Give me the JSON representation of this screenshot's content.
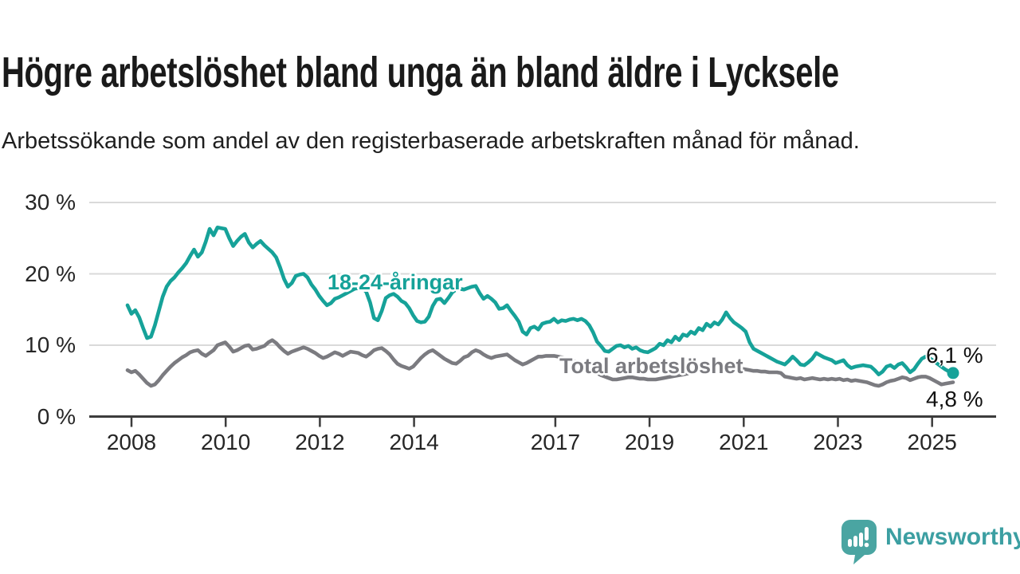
{
  "header": {
    "title": "Högre arbetslöshet bland unga än bland äldre i Lycksele",
    "subtitle": "Arbetssökande som andel av den registerbaserade arbetskraften månad för månad."
  },
  "chart_data": {
    "type": "line",
    "unit": "%",
    "x_start": "2008-01",
    "x_end": "2025-08",
    "points_per_year": 12,
    "ylim": [
      0,
      30
    ],
    "grid": "horizontal",
    "legend_position": "inline-labels",
    "yticks": [
      {
        "value": 0,
        "label": "0 %"
      },
      {
        "value": 10,
        "label": "10 %"
      },
      {
        "value": 20,
        "label": "20 %"
      },
      {
        "value": 30,
        "label": "30 %"
      }
    ],
    "xticks": [
      {
        "year": 2008,
        "label": "2008"
      },
      {
        "year": 2010,
        "label": "2010"
      },
      {
        "year": 2012,
        "label": "2012"
      },
      {
        "year": 2014,
        "label": "2014"
      },
      {
        "year": 2017,
        "label": "2017"
      },
      {
        "year": 2019,
        "label": "2019"
      },
      {
        "year": 2021,
        "label": "2021"
      },
      {
        "year": 2023,
        "label": "2023"
      },
      {
        "year": 2025,
        "label": "2025"
      }
    ],
    "series": [
      {
        "id": "total",
        "label": "Total arbetslöshet",
        "color": "#7b7b80",
        "end_label": "4,8 %",
        "end_dot": false,
        "values": [
          6.5,
          6.2,
          6.4,
          5.9,
          5.3,
          4.7,
          4.3,
          4.5,
          5.1,
          5.8,
          6.4,
          7.0,
          7.5,
          7.9,
          8.3,
          8.6,
          9.0,
          9.2,
          9.3,
          8.8,
          8.5,
          8.9,
          9.3,
          10.0,
          10.2,
          10.4,
          9.8,
          9.1,
          9.3,
          9.6,
          9.9,
          10.0,
          9.4,
          9.5,
          9.7,
          9.9,
          10.4,
          10.7,
          10.3,
          9.7,
          9.2,
          8.8,
          9.1,
          9.3,
          9.5,
          9.7,
          9.5,
          9.2,
          8.9,
          8.5,
          8.2,
          8.4,
          8.7,
          9.0,
          8.8,
          8.5,
          8.8,
          9.1,
          9.0,
          8.9,
          8.6,
          8.4,
          8.8,
          9.3,
          9.5,
          9.6,
          9.2,
          8.7,
          8.0,
          7.4,
          7.1,
          6.9,
          6.7,
          7.0,
          7.6,
          8.2,
          8.7,
          9.1,
          9.3,
          8.9,
          8.5,
          8.1,
          7.8,
          7.5,
          7.4,
          7.8,
          8.3,
          8.5,
          9.0,
          9.3,
          9.1,
          8.7,
          8.4,
          8.2,
          8.4,
          8.5,
          8.6,
          8.7,
          8.3,
          7.9,
          7.6,
          7.3,
          7.5,
          7.8,
          8.1,
          8.4,
          8.4,
          8.5,
          8.5,
          8.5,
          8.4,
          8.3,
          8.2,
          8.0,
          7.8,
          7.6,
          7.3,
          7.0,
          6.7,
          6.4,
          6.1,
          5.8,
          5.6,
          5.4,
          5.2,
          5.2,
          5.3,
          5.4,
          5.5,
          5.5,
          5.4,
          5.3,
          5.3,
          5.2,
          5.2,
          5.2,
          5.3,
          5.4,
          5.5,
          5.6,
          5.7,
          5.8,
          5.9,
          6.0,
          6.2,
          6.4,
          6.8,
          7.2,
          7.4,
          7.5,
          7.4,
          7.3,
          7.2,
          7.1,
          7.0,
          6.9,
          6.8,
          6.7,
          6.6,
          6.5,
          6.4,
          6.4,
          6.3,
          6.3,
          6.2,
          6.2,
          6.2,
          6.1,
          5.6,
          5.5,
          5.4,
          5.3,
          5.4,
          5.2,
          5.3,
          5.4,
          5.3,
          5.2,
          5.3,
          5.2,
          5.3,
          5.2,
          5.3,
          5.1,
          5.2,
          5.0,
          5.1,
          5.0,
          4.9,
          4.8,
          4.6,
          4.4,
          4.3,
          4.5,
          4.8,
          5.0,
          5.1,
          5.3,
          5.5,
          5.4,
          5.1,
          5.3,
          5.5,
          5.6,
          5.6,
          5.4,
          5.1,
          4.8,
          4.5,
          4.6,
          4.7,
          4.8
        ]
      },
      {
        "id": "youth",
        "label": "18-24-åringar",
        "color": "#16a299",
        "end_label": "6,1 %",
        "end_dot": true,
        "values": [
          15.6,
          14.4,
          14.9,
          13.9,
          12.4,
          11.0,
          11.2,
          12.8,
          14.8,
          16.8,
          18.2,
          19.0,
          19.5,
          20.2,
          20.8,
          21.5,
          22.5,
          23.4,
          22.4,
          23.0,
          24.5,
          26.3,
          25.4,
          26.5,
          26.4,
          26.3,
          25.0,
          23.9,
          24.6,
          25.2,
          25.6,
          24.4,
          23.7,
          24.2,
          24.6,
          24.0,
          23.5,
          23.0,
          22.3,
          20.9,
          19.3,
          18.2,
          18.7,
          19.7,
          19.9,
          20.0,
          19.5,
          18.5,
          17.8,
          16.9,
          16.2,
          15.6,
          15.9,
          16.5,
          16.7,
          17.0,
          17.3,
          17.6,
          17.9,
          18.0,
          18.0,
          17.5,
          16.0,
          13.8,
          13.5,
          14.8,
          16.6,
          17.0,
          17.2,
          16.8,
          16.2,
          15.9,
          15.2,
          14.2,
          13.4,
          13.2,
          13.3,
          14.0,
          15.5,
          16.4,
          16.5,
          15.9,
          16.6,
          17.4,
          17.8,
          17.9,
          17.8,
          18.0,
          18.2,
          18.3,
          17.3,
          16.5,
          16.9,
          16.5,
          16.0,
          15.1,
          15.2,
          15.6,
          14.8,
          14.1,
          13.3,
          11.9,
          11.5,
          12.4,
          12.6,
          12.2,
          13.0,
          13.2,
          13.3,
          13.7,
          13.2,
          13.5,
          13.4,
          13.6,
          13.7,
          13.5,
          13.7,
          13.4,
          12.8,
          11.8,
          10.5,
          9.9,
          9.2,
          9.1,
          9.5,
          9.9,
          10.0,
          9.7,
          9.9,
          9.5,
          9.7,
          9.3,
          9.1,
          9.0,
          9.3,
          9.6,
          10.2,
          10.0,
          10.7,
          10.4,
          11.2,
          10.7,
          11.5,
          11.3,
          11.9,
          11.6,
          12.4,
          12.1,
          13.0,
          12.6,
          13.2,
          12.9,
          13.6,
          14.6,
          13.8,
          13.2,
          12.8,
          12.4,
          11.9,
          10.4,
          9.5,
          9.2,
          8.9,
          8.6,
          8.3,
          8.0,
          7.7,
          7.5,
          7.3,
          7.8,
          8.4,
          7.9,
          7.3,
          7.2,
          7.6,
          8.1,
          8.9,
          8.6,
          8.3,
          8.1,
          7.9,
          7.5,
          7.7,
          7.9,
          7.2,
          6.8,
          7.0,
          7.1,
          7.2,
          7.1,
          7.0,
          6.5,
          5.9,
          6.3,
          7.0,
          7.2,
          6.8,
          7.3,
          7.5,
          6.9,
          6.2,
          6.6,
          7.4,
          8.1,
          8.4,
          8.2,
          7.8,
          7.4,
          7.0,
          6.6,
          6.3,
          6.1
        ]
      }
    ]
  },
  "footer": {
    "brand": "Newsworthy",
    "logo_icon": "speech-bubble-bar-chart-icon"
  },
  "colors": {
    "youth_line": "#16a299",
    "total_line": "#7b7b80",
    "gridline": "#dadada",
    "axis": "#3c3c3c",
    "logo_teal": "#4aa5a2",
    "logo_text": "#3c9fa2"
  }
}
